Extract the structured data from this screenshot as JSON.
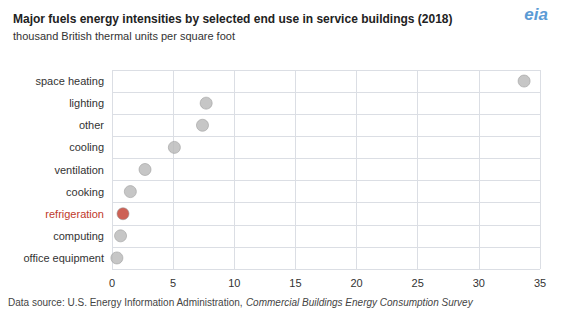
{
  "chart_data": {
    "type": "scatter",
    "orientation": "horizontal",
    "title": "Major fuels energy intensities by selected end use in service buildings (2018)",
    "subtitle": "thousand British thermal units per square foot",
    "annotations": [
      "eia"
    ],
    "footnote": [
      "Data source: U.S. Energy Information Administration, ",
      "Commercial Buildings Energy Consumption Survey"
    ],
    "categories": [
      "space heating",
      "lighting",
      "other",
      "cooling",
      "ventilation",
      "cooking",
      "refrigeration",
      "computing",
      "office equipment"
    ],
    "values": [
      33.7,
      7.7,
      7.4,
      5.1,
      2.7,
      1.5,
      0.9,
      0.7,
      0.4
    ],
    "colors": [
      "#b8b8b8",
      "#b8b8b8",
      "#b8b8b8",
      "#b8b8b8",
      "#b8b8b8",
      "#b8b8b8",
      "#c0392b",
      "#b8b8b8",
      "#b8b8b8"
    ],
    "xlim": [
      0,
      35
    ],
    "xticks": [
      0,
      5,
      10,
      15,
      20,
      25,
      30,
      35
    ],
    "grid": true
  }
}
